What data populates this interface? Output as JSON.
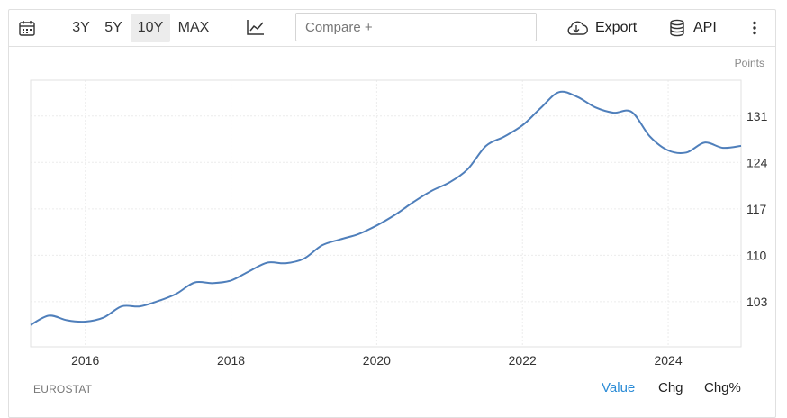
{
  "toolbar": {
    "calendar_icon": "calendar-icon",
    "ranges": [
      "3Y",
      "5Y",
      "10Y",
      "MAX"
    ],
    "active_range": "10Y",
    "chart_type_icon": "line-chart-icon",
    "compare_placeholder": "Compare +",
    "export_label": "Export",
    "export_icon": "cloud-download-icon",
    "api_label": "API",
    "api_icon": "database-icon",
    "more_icon": "vertical-ellipsis-icon"
  },
  "footer": {
    "source": "EUROSTAT",
    "modes": [
      "Value",
      "Chg",
      "Chg%"
    ],
    "active_mode": "Value",
    "active_color": "#2a8bd6"
  },
  "chart_data": {
    "type": "line",
    "unit_label": "Points",
    "x_ticks": [
      "2016",
      "2018",
      "2020",
      "2022",
      "2024"
    ],
    "y_ticks": [
      103,
      110,
      117,
      124,
      131
    ],
    "xlim": [
      2015.25,
      2025.0
    ],
    "ylim": [
      96.2,
      136.4
    ],
    "grid": true,
    "y_axis_side": "right",
    "line_color": "#4f7fbb",
    "series": [
      {
        "x": [
          2015.25,
          2015.5,
          2015.75,
          2016.0,
          2016.25,
          2016.5,
          2016.75,
          2017.0,
          2017.25,
          2017.5,
          2017.75,
          2018.0,
          2018.25,
          2018.5,
          2018.75,
          2019.0,
          2019.25,
          2019.5,
          2019.75,
          2020.0,
          2020.25,
          2020.5,
          2020.75,
          2021.0,
          2021.25,
          2021.5,
          2021.75,
          2022.0,
          2022.25,
          2022.5,
          2022.75,
          2023.0,
          2023.25,
          2023.5,
          2023.75,
          2024.0,
          2024.25,
          2024.5,
          2024.75,
          2025.0
        ],
        "y": [
          99.5,
          100.9,
          100.2,
          100.0,
          100.6,
          102.3,
          102.3,
          103.1,
          104.2,
          105.9,
          105.8,
          106.2,
          107.6,
          108.9,
          108.8,
          109.5,
          111.5,
          112.4,
          113.2,
          114.5,
          116.1,
          118.0,
          119.7,
          121.0,
          123.0,
          126.5,
          127.9,
          129.6,
          132.2,
          134.6,
          133.9,
          132.3,
          131.5,
          131.6,
          127.9,
          125.8,
          125.5,
          127.0,
          126.2,
          126.5
        ]
      }
    ]
  }
}
